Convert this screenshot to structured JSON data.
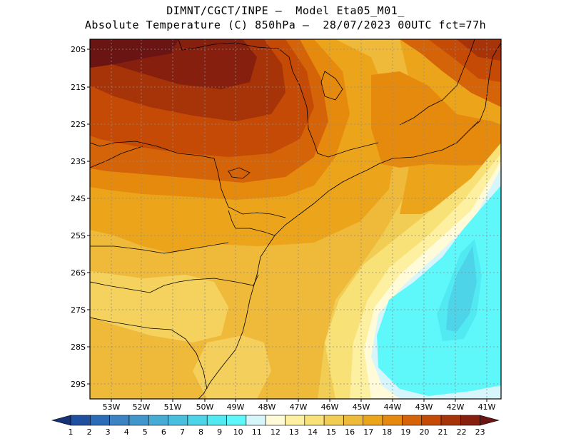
{
  "title": {
    "line1": "DIMNT/CGCT/INPE –  Model Eta05_M01_",
    "line2": "Absolute Temperature (C) 850hPa –  28/07/2023 00UTC fct=77h"
  },
  "map": {
    "lat_range": [
      -29.4,
      -19.8
    ],
    "lon_range": [
      -53.5,
      -40.9
    ],
    "lat_ticks": [
      "20S",
      "21S",
      "22S",
      "23S",
      "24S",
      "25S",
      "26S",
      "27S",
      "28S",
      "29S"
    ],
    "lon_ticks": [
      "53W",
      "52W",
      "51W",
      "50W",
      "49W",
      "48W",
      "47W",
      "46W",
      "45W",
      "44W",
      "43W",
      "42W",
      "41W"
    ],
    "grid": "dotted",
    "field": "temperature 850hPa, warmest (21-23C) over inland São Paulo in the northwest, cooling toward the southeast, coldest (9-10C) over the Atlantic east of 44W"
  },
  "colorbar": {
    "labels": [
      "1",
      "2",
      "3",
      "4",
      "5",
      "6",
      "7",
      "8",
      "9",
      "10",
      "11",
      "12",
      "13",
      "14",
      "15",
      "16",
      "17",
      "18",
      "19",
      "20",
      "21",
      "22",
      "23"
    ],
    "colors": [
      "#16337a",
      "#1f4f9e",
      "#2b6cb8",
      "#3a83c4",
      "#4197cc",
      "#46acd6",
      "#49bfdf",
      "#4dd4e8",
      "#52eaf2",
      "#5ef7fa",
      "#d7f6fb",
      "#fffbd8",
      "#fdf0a0",
      "#f8e177",
      "#f2cd54",
      "#efb93a",
      "#eca51b",
      "#e68a0e",
      "#d56409",
      "#c44a06",
      "#a73309",
      "#871f0e",
      "#6a1414"
    ]
  }
}
